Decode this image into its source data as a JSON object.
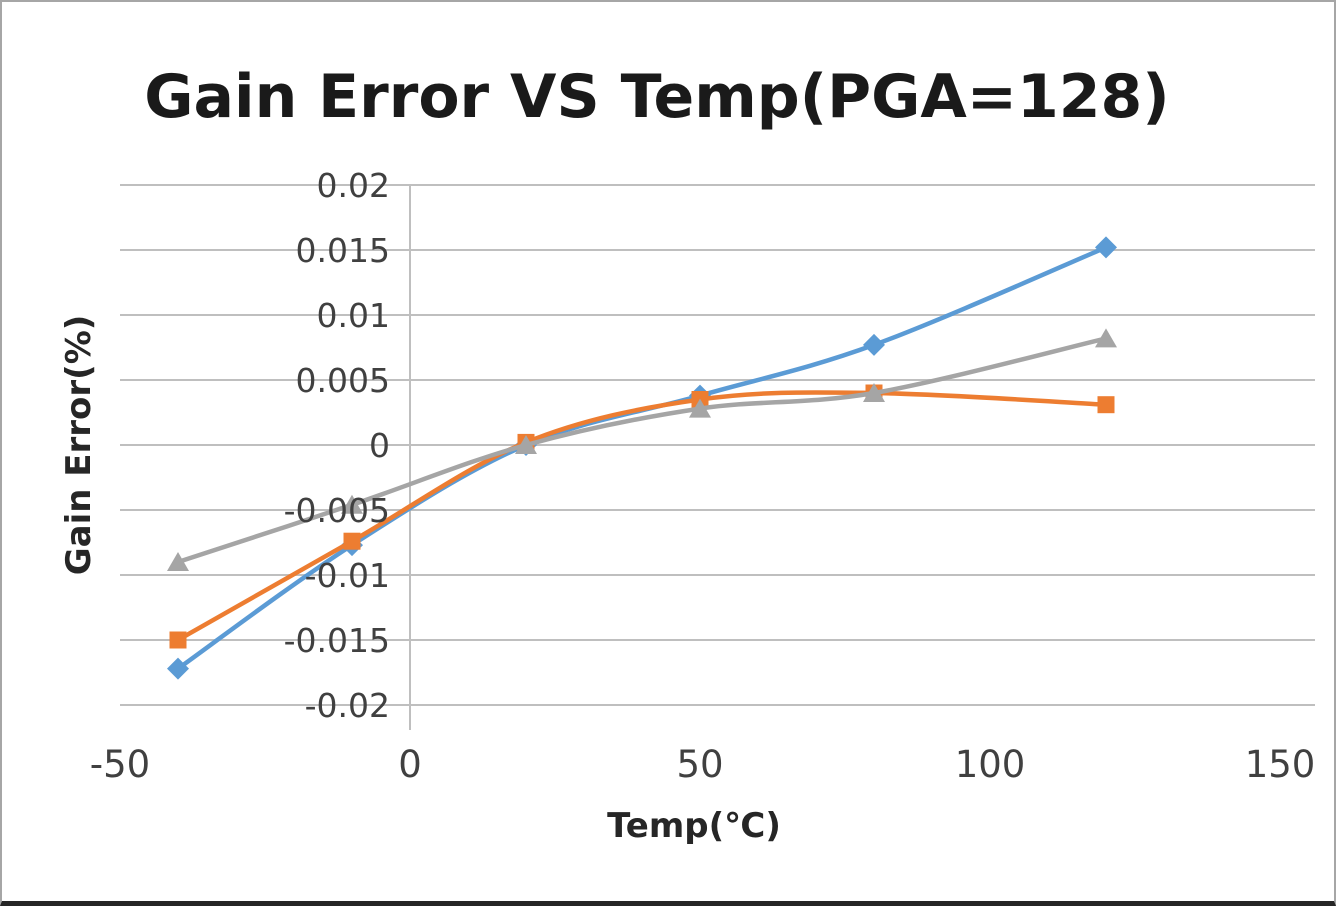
{
  "chart_data": {
    "type": "line",
    "title": "Gain Error VS Temp(PGA=128)",
    "xlabel": "Temp(℃)",
    "ylabel": "Gain Error(%)",
    "grid": true,
    "legend": "none",
    "xlim": [
      -50,
      150
    ],
    "ylim": [
      -0.02,
      0.02
    ],
    "x_ticks": [
      "-50",
      "0",
      "50",
      "100",
      "150"
    ],
    "y_ticks": [
      "0.02",
      "0.015",
      "0.01",
      "0.005",
      "0",
      "-0.005",
      "-0.01",
      "-0.015",
      "-0.02"
    ],
    "x": [
      -40,
      -10,
      20,
      50,
      80,
      120
    ],
    "series": [
      {
        "name": "blue-diamond",
        "color": "#5B9BD5",
        "marker": "diamond",
        "values": [
          -0.0172,
          -0.0077,
          0.0,
          0.0038,
          0.0077,
          0.0152
        ]
      },
      {
        "name": "orange-square",
        "color": "#ED7D31",
        "marker": "square",
        "values": [
          -0.015,
          -0.0074,
          0.0002,
          0.0035,
          0.004,
          0.0031
        ]
      },
      {
        "name": "gray-triangle",
        "color": "#A5A5A5",
        "marker": "triangle",
        "values": [
          -0.009,
          -0.0046,
          0.0,
          0.0028,
          0.004,
          0.0082
        ]
      }
    ]
  }
}
